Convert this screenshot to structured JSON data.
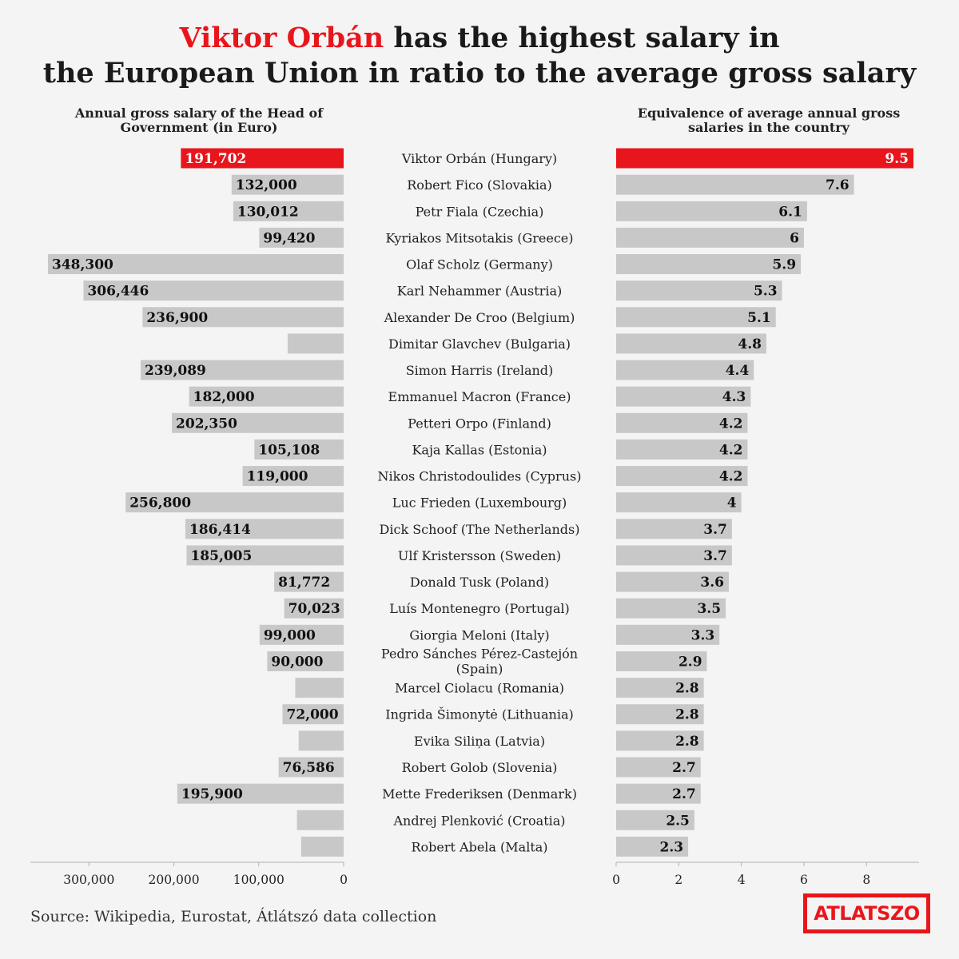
{
  "title": {
    "highlight": "Viktor Orbán",
    "rest_line1": " has the highest salary in",
    "line2": "the European Union in ratio to the average gross salary"
  },
  "colors": {
    "highlight": "#e8161c",
    "bar": "#c8c8c8",
    "axis": "#b0b0b0",
    "background": "#f4f4f4"
  },
  "source": "Source: Wikipedia, Eurostat, Átlátszó data collection",
  "logo": {
    "text": "ATLATSZO"
  },
  "chart_data": [
    {
      "type": "bar",
      "orientation": "horizontal",
      "direction": "leftward",
      "title": "Annual gross salary of the Head of Government (in Euro)",
      "xlim": [
        0,
        355000
      ],
      "xticks": [
        0,
        100000,
        200000,
        300000
      ],
      "xtick_labels": [
        "0",
        "100,000",
        "200,000",
        "300,000"
      ],
      "highlight_index": 0,
      "categories": [
        "Viktor Orbán (Hungary)",
        "Robert Fico (Slovakia)",
        "Petr Fiala (Czechia)",
        "Kyriakos Mitsotakis (Greece)",
        "Olaf Scholz (Germany)",
        "Karl Nehammer (Austria)",
        "Alexander De Croo (Belgium)",
        "Dimitar Glavchev (Bulgaria)",
        "Simon Harris (Ireland)",
        "Emmanuel Macron (France)",
        "Petteri Orpo (Finland)",
        "Kaja Kallas (Estonia)",
        "Nikos Christodoulides (Cyprus)",
        "Luc Frieden (Luxembourg)",
        "Dick Schoof (The Netherlands)",
        "Ulf Kristersson (Sweden)",
        "Donald Tusk (Poland)",
        "Luís Montenegro (Portugal)",
        "Giorgia Meloni (Italy)",
        "Pedro Sánches Pérez-Castejón (Spain)",
        "Marcel Ciolacu (Romania)",
        "Ingrida Šimonytė (Lithuania)",
        "Evika Siliņa (Latvia)",
        "Robert Golob (Slovenia)",
        "Mette Frederiksen (Denmark)",
        "Andrej Plenković (Croatia)",
        "Robert Abela (Malta)"
      ],
      "values": [
        191702,
        132000,
        130012,
        99420,
        348300,
        306446,
        236900,
        66000,
        239089,
        182000,
        202350,
        105108,
        119000,
        256800,
        186414,
        185005,
        81772,
        70023,
        99000,
        90000,
        57000,
        72000,
        53000,
        76586,
        195900,
        55000,
        50000
      ],
      "value_labels": [
        "191,702",
        "132,000",
        "130,012",
        "99,420",
        "348,300",
        "306,446",
        "236,900",
        "",
        "239,089",
        "182,000",
        "202,350",
        "105,108",
        "119,000",
        "256,800",
        "186,414",
        "185,005",
        "81,772",
        "70,023",
        "99,000",
        "90,000",
        "",
        "72,000",
        "",
        "76,586",
        "195,900",
        "",
        ""
      ]
    },
    {
      "type": "bar",
      "orientation": "horizontal",
      "direction": "rightward",
      "title": "Equivalence of average annual gross salaries in the country",
      "xlim": [
        0,
        9.5
      ],
      "xticks": [
        0,
        2,
        4,
        6,
        8
      ],
      "xtick_labels": [
        "0",
        "2",
        "4",
        "6",
        "8"
      ],
      "highlight_index": 0,
      "values": [
        9.5,
        7.6,
        6.1,
        6,
        5.9,
        5.3,
        5.1,
        4.8,
        4.4,
        4.3,
        4.2,
        4.2,
        4.2,
        4,
        3.7,
        3.7,
        3.6,
        3.5,
        3.3,
        2.9,
        2.8,
        2.8,
        2.8,
        2.7,
        2.7,
        2.5,
        2.3
      ],
      "value_labels": [
        "9.5",
        "7.6",
        "6.1",
        "6",
        "5.9",
        "5.3",
        "5.1",
        "4.8",
        "4.4",
        "4.3",
        "4.2",
        "4.2",
        "4.2",
        "4",
        "3.7",
        "3.7",
        "3.6",
        "3.5",
        "3.3",
        "2.9",
        "2.8",
        "2.8",
        "2.8",
        "2.7",
        "2.7",
        "2.5",
        "2.3"
      ]
    }
  ]
}
